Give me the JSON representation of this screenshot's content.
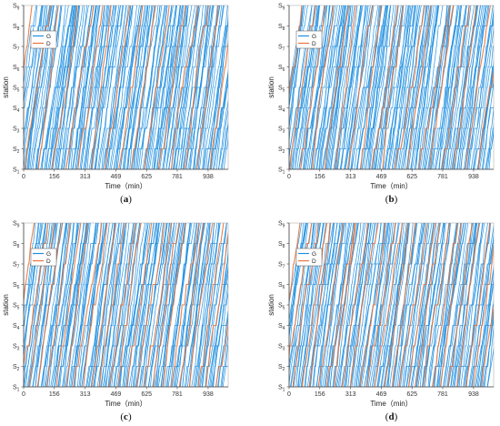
{
  "colors": {
    "G": "#1f8fe0",
    "D": "#e8743b",
    "axis": "#444444",
    "frame": "#b0b0b0"
  },
  "panels": [
    "a",
    "b",
    "c",
    "d"
  ],
  "chart_data": [
    {
      "type": "line",
      "panel_label": "(a)",
      "xlabel": "Time（min）",
      "ylabel": "station",
      "xticks": [
        "0",
        "156",
        "313",
        "469",
        "625",
        "781",
        "938"
      ],
      "xtick_values": [
        0,
        156,
        313,
        469,
        625,
        781,
        938
      ],
      "xlim": [
        0,
        1040
      ],
      "yticks": [
        "S",
        "S",
        "S",
        "S",
        "S",
        "S",
        "S",
        "S",
        "S"
      ],
      "ytick_subscripts": [
        "1",
        "2",
        "3",
        "4",
        "5",
        "6",
        "7",
        "8",
        "9"
      ],
      "legend": [
        "G",
        "D"
      ],
      "legend_location": "upper-left",
      "series": [
        {
          "name": "G",
          "count": 160,
          "seed": 11
        },
        {
          "name": "D",
          "count": 16,
          "seed": 12
        }
      ]
    },
    {
      "type": "line",
      "panel_label": "(b)",
      "xlabel": "Time（min）",
      "ylabel": "station",
      "xticks": [
        "0",
        "156",
        "313",
        "469",
        "625",
        "781",
        "938"
      ],
      "xtick_values": [
        0,
        156,
        313,
        469,
        625,
        781,
        938
      ],
      "xlim": [
        0,
        1040
      ],
      "yticks": [
        "S",
        "S",
        "S",
        "S",
        "S",
        "S",
        "S",
        "S",
        "S"
      ],
      "ytick_subscripts": [
        "1",
        "2",
        "3",
        "4",
        "5",
        "6",
        "7",
        "8",
        "9"
      ],
      "legend": [
        "G",
        "D"
      ],
      "legend_location": "upper-left",
      "series": [
        {
          "name": "G",
          "count": 160,
          "seed": 21
        },
        {
          "name": "D",
          "count": 18,
          "seed": 22
        }
      ]
    },
    {
      "type": "line",
      "panel_label": "(c)",
      "xlabel": "Time（min）",
      "ylabel": "station",
      "xticks": [
        "0",
        "156",
        "313",
        "469",
        "625",
        "781",
        "938"
      ],
      "xtick_values": [
        0,
        156,
        313,
        469,
        625,
        781,
        938
      ],
      "xlim": [
        0,
        1040
      ],
      "yticks": [
        "S",
        "S",
        "S",
        "S",
        "S",
        "S",
        "S",
        "S",
        "S"
      ],
      "ytick_subscripts": [
        "1",
        "2",
        "3",
        "4",
        "5",
        "6",
        "7",
        "8",
        "9"
      ],
      "legend": [
        "G",
        "D"
      ],
      "legend_location": "upper-left",
      "series": [
        {
          "name": "G",
          "count": 150,
          "seed": 31
        },
        {
          "name": "D",
          "count": 24,
          "seed": 32
        }
      ]
    },
    {
      "type": "line",
      "panel_label": "(d)",
      "xlabel": "Time（min）",
      "ylabel": "station",
      "xticks": [
        "0",
        "156",
        "313",
        "469",
        "625",
        "781",
        "938"
      ],
      "xtick_values": [
        0,
        156,
        313,
        469,
        625,
        781,
        938
      ],
      "xlim": [
        0,
        1040
      ],
      "yticks": [
        "S",
        "S",
        "S",
        "S",
        "S",
        "S",
        "S",
        "S",
        "S"
      ],
      "ytick_subscripts": [
        "1",
        "2",
        "3",
        "4",
        "5",
        "6",
        "7",
        "8",
        "9"
      ],
      "legend": [
        "G",
        "D"
      ],
      "legend_location": "upper-left",
      "series": [
        {
          "name": "G",
          "count": 150,
          "seed": 41
        },
        {
          "name": "D",
          "count": 26,
          "seed": 42
        }
      ]
    }
  ]
}
